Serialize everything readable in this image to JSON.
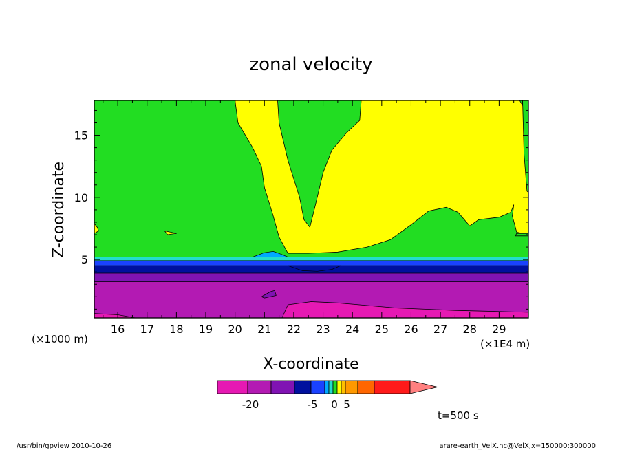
{
  "chart_data": {
    "type": "heatmap",
    "title": "zonal velocity",
    "xlabel": "X-coordinate",
    "ylabel": "Z-coordinate",
    "x_unit_left": "(×1000 m)",
    "x_unit_right": "(×1E4 m)",
    "xlim": [
      15.2,
      30.0
    ],
    "ylim": [
      0.3,
      17.8
    ],
    "x_ticks": [
      16,
      17,
      18,
      19,
      20,
      21,
      22,
      23,
      24,
      25,
      26,
      27,
      28,
      29
    ],
    "y_ticks": [
      5,
      10,
      15
    ],
    "time_label": "t=500 s",
    "colorbar": {
      "colors": [
        "#e619b3",
        "#b31ab3",
        "#8013b3",
        "#00109e",
        "#1a42ff",
        "#00aaff",
        "#22ddcc",
        "#22dd22",
        "#ffff00",
        "#ffc000",
        "#ff9900",
        "#ff6600",
        "#ff1a1a",
        "#ff8080"
      ],
      "tick_labels": [
        "-20",
        "-5",
        "0",
        "5"
      ]
    },
    "regions": [
      {
        "name": "surface-max-negative",
        "color": "#e619b3",
        "polygon": [
          [
            21.6,
            0.3
          ],
          [
            21.8,
            1.35
          ],
          [
            22.6,
            1.6
          ],
          [
            23.5,
            1.5
          ],
          [
            25.5,
            1.1
          ],
          [
            27.5,
            0.9
          ],
          [
            29.2,
            0.8
          ],
          [
            30.0,
            0.75
          ],
          [
            30.0,
            0.3
          ]
        ]
      },
      {
        "name": "surface-patch",
        "color": "#e619b3",
        "polygon": [
          [
            15.2,
            0.3
          ],
          [
            15.2,
            0.65
          ],
          [
            16.0,
            0.55
          ],
          [
            16.6,
            0.3
          ]
        ]
      },
      {
        "name": "small-island",
        "color": "#8013b3",
        "polygon": [
          [
            20.9,
            2.0
          ],
          [
            21.2,
            2.4
          ],
          [
            21.35,
            2.5
          ],
          [
            21.4,
            2.1
          ],
          [
            21.0,
            1.9
          ]
        ]
      },
      {
        "name": "yellow-plume",
        "color": "#ffff00",
        "polygon": [
          [
            20.0,
            17.8
          ],
          [
            20.1,
            16.0
          ],
          [
            20.6,
            14.0
          ],
          [
            20.9,
            12.5
          ],
          [
            21.0,
            10.8
          ],
          [
            21.3,
            8.5
          ],
          [
            21.5,
            6.8
          ],
          [
            21.8,
            5.5
          ],
          [
            22.5,
            5.5
          ],
          [
            23.5,
            5.6
          ],
          [
            24.5,
            6.0
          ],
          [
            25.3,
            6.6
          ],
          [
            26.0,
            7.8
          ],
          [
            26.6,
            8.9
          ],
          [
            27.2,
            9.2
          ],
          [
            27.6,
            8.8
          ],
          [
            28.0,
            7.7
          ],
          [
            28.3,
            8.2
          ],
          [
            29.0,
            8.4
          ],
          [
            29.4,
            8.8
          ],
          [
            29.5,
            9.4
          ],
          [
            29.45,
            8.5
          ],
          [
            29.6,
            7.2
          ],
          [
            30.0,
            7.0
          ],
          [
            30.0,
            17.8
          ],
          [
            29.8,
            17.8
          ],
          [
            29.8,
            17.4
          ],
          [
            29.7,
            17.8
          ],
          [
            24.3,
            17.8
          ],
          [
            24.25,
            16.2
          ],
          [
            23.8,
            15.2
          ],
          [
            23.3,
            13.8
          ],
          [
            23.0,
            12.0
          ],
          [
            22.75,
            9.5
          ],
          [
            22.55,
            7.6
          ],
          [
            22.35,
            8.2
          ],
          [
            22.2,
            10.0
          ],
          [
            21.8,
            13.0
          ],
          [
            21.5,
            16.0
          ],
          [
            21.45,
            17.8
          ]
        ]
      },
      {
        "name": "green-cutout-right",
        "color": "#22dd22",
        "polygon": [
          [
            29.8,
            17.8
          ],
          [
            29.85,
            13.5
          ],
          [
            29.95,
            10.5
          ],
          [
            30.0,
            10.4
          ],
          [
            30.0,
            17.8
          ]
        ]
      },
      {
        "name": "green-cutout-bottom-right",
        "color": "#22dd22",
        "polygon": [
          [
            29.55,
            6.9
          ],
          [
            30.0,
            6.9
          ],
          [
            30.0,
            7.1
          ],
          [
            29.6,
            7.1
          ]
        ]
      },
      {
        "name": "yellow-speck-left",
        "color": "#ffff00",
        "polygon": [
          [
            15.2,
            7.9
          ],
          [
            15.3,
            7.6
          ],
          [
            15.35,
            7.3
          ],
          [
            15.2,
            7.1
          ]
        ]
      },
      {
        "name": "yellow-speck-mid",
        "color": "#ffff00",
        "polygon": [
          [
            17.6,
            7.3
          ],
          [
            17.8,
            7.2
          ],
          [
            18.0,
            7.1
          ],
          [
            17.7,
            7.0
          ]
        ]
      }
    ],
    "bands": [
      {
        "name": "base-negative",
        "color": "#b31ab3",
        "y0": 0.3,
        "y1": 3.2
      },
      {
        "name": "layer-purple",
        "color": "#8013b3",
        "y0": 3.2,
        "y1": 3.9
      },
      {
        "name": "layer-darkblue",
        "color": "#00109e",
        "y0": 3.9,
        "y1": 4.5
      },
      {
        "name": "layer-blue",
        "color": "#1a42ff",
        "y0": 4.5,
        "y1": 4.9
      },
      {
        "name": "layer-cyan",
        "color": "#22ddcc",
        "y0": 4.9,
        "y1": 5.2
      },
      {
        "name": "layer-green",
        "color": "#22dd22",
        "y0": 5.2,
        "y1": 17.8
      }
    ],
    "bulges": [
      {
        "name": "cyan-bulge",
        "color": "#00aaff",
        "points": [
          [
            20.6,
            5.2
          ],
          [
            21.0,
            5.55
          ],
          [
            21.3,
            5.65
          ],
          [
            21.6,
            5.4
          ],
          [
            21.8,
            5.2
          ]
        ]
      },
      {
        "name": "blue-dip",
        "color": "#00109e",
        "points": [
          [
            21.8,
            4.5
          ],
          [
            22.3,
            4.1
          ],
          [
            22.8,
            4.05
          ],
          [
            23.3,
            4.2
          ],
          [
            23.6,
            4.5
          ]
        ]
      }
    ]
  },
  "footer": {
    "left": "/usr/bin/gpview  2010-10-26",
    "right": "arare-earth_VelX.nc@VelX,x=150000:300000"
  }
}
